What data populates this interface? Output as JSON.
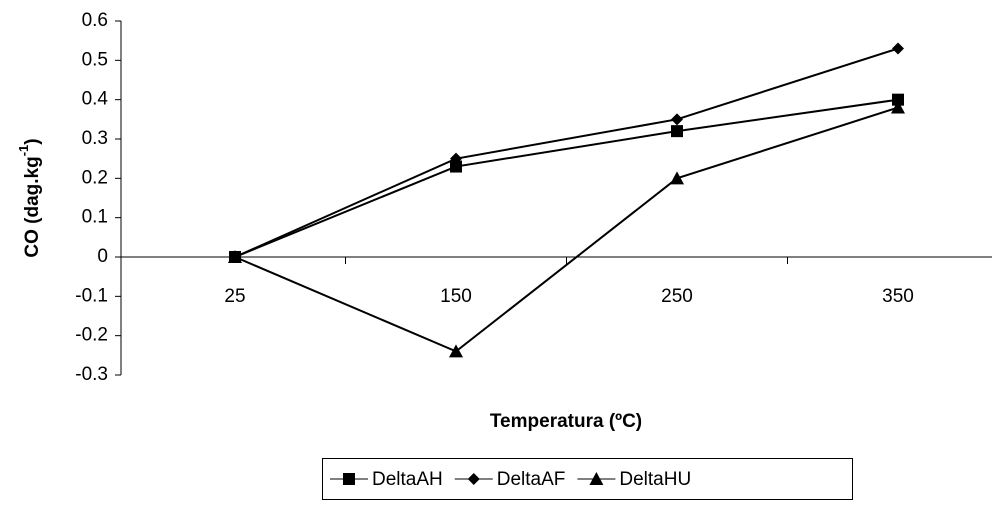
{
  "chart_data": {
    "type": "line",
    "x_label": "Temperatura (ºC)",
    "y_label": {
      "text": "CO (dag.kg",
      "superscript": "-1",
      "suffix": ")"
    },
    "categories": [
      "25",
      "150",
      "250",
      "350"
    ],
    "series": [
      {
        "name": "DeltaAH",
        "color": "#000000",
        "marker": "square",
        "values": [
          0,
          0.23,
          0.32,
          0.4
        ]
      },
      {
        "name": "DeltaAF",
        "color": "#000000",
        "marker": "diamond",
        "values": [
          0,
          0.25,
          0.35,
          0.53
        ]
      },
      {
        "name": "DeltaHU",
        "color": "#000000",
        "marker": "triangle",
        "values": [
          0,
          -0.24,
          0.2,
          0.38
        ]
      }
    ],
    "ylim": [
      -0.3,
      0.6
    ],
    "yticks": [
      -0.3,
      -0.2,
      -0.1,
      0,
      0.1,
      0.2,
      0.3,
      0.4,
      0.5,
      0.6
    ],
    "grid": false,
    "legend": "bottom"
  }
}
